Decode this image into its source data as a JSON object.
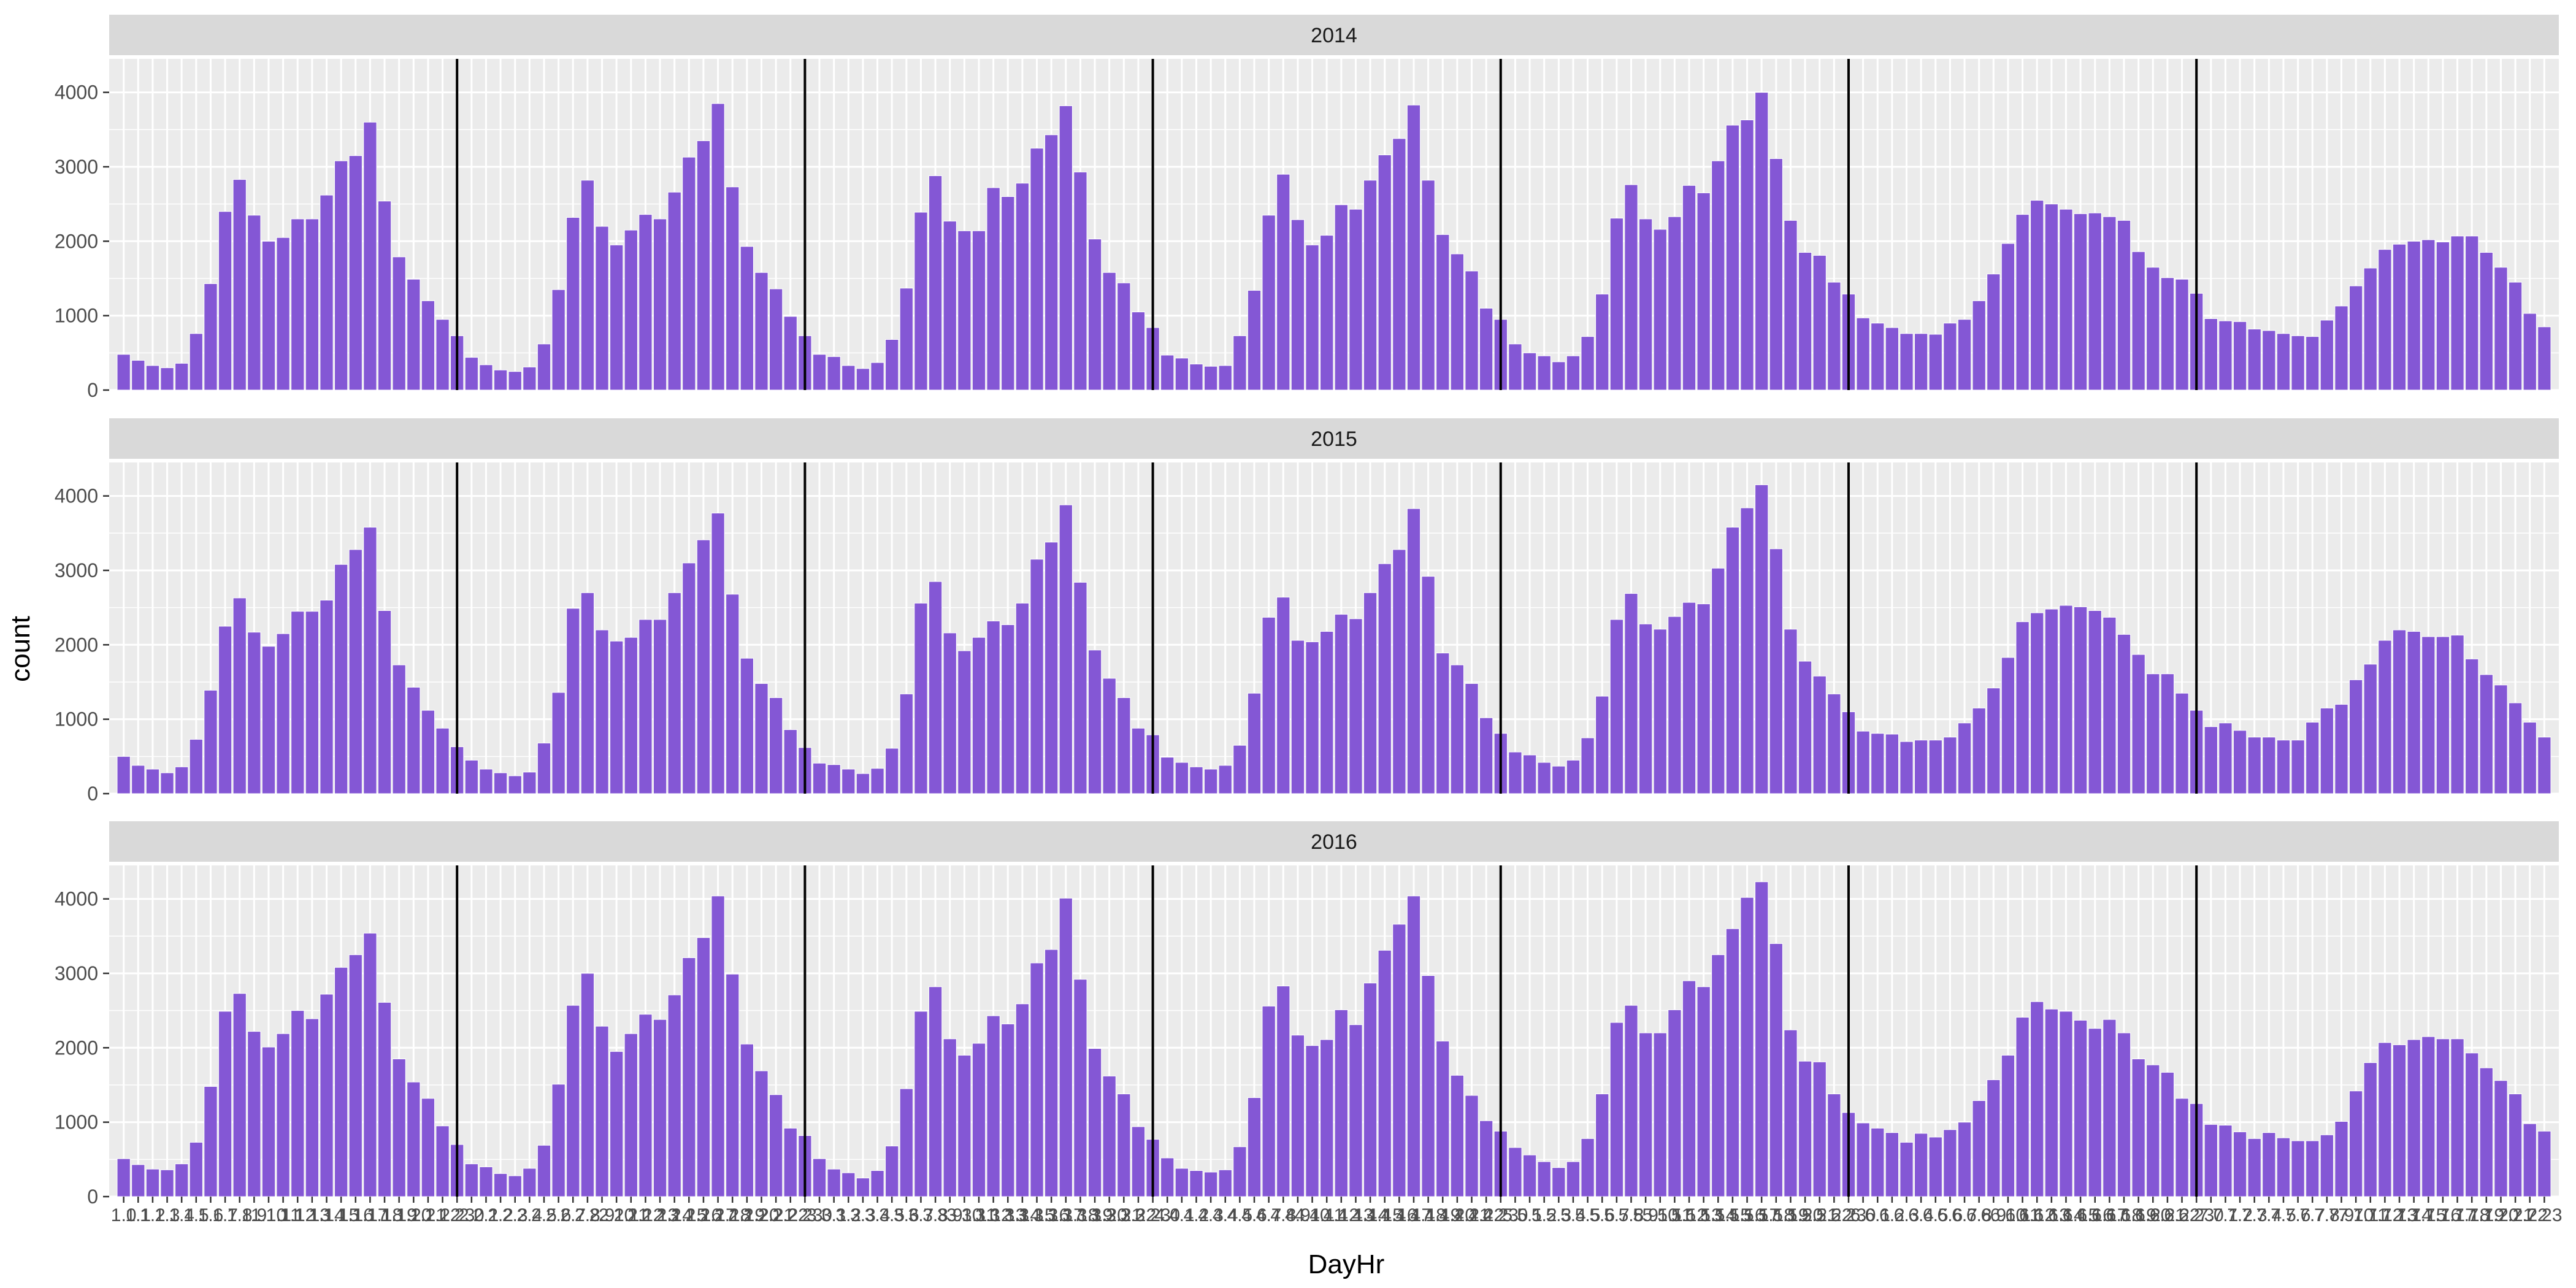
{
  "chart_data": {
    "type": "bar",
    "xlabel": "DayHr",
    "ylabel": "count",
    "ylim": [
      0,
      4450
    ],
    "y_ticks": [
      0,
      1000,
      2000,
      3000,
      4000
    ],
    "panel_background": "#EBEBEB",
    "strip_background": "#D9D9D9",
    "bar_color": "#8457D5",
    "day_separator_color": "#000000",
    "hours_per_day": 24,
    "num_days": 7,
    "panels": [
      {
        "title": "2014",
        "days": [
          [
            480,
            400,
            330,
            300,
            360,
            760,
            1430,
            2400,
            2830,
            2350,
            2000,
            2050,
            2300,
            2300,
            2620,
            3080,
            3150,
            3600,
            2540,
            1790,
            1490,
            1200,
            950,
            730
          ],
          [
            440,
            340,
            270,
            250,
            310,
            620,
            1350,
            2320,
            2820,
            2200,
            1950,
            2150,
            2360,
            2300,
            2660,
            3130,
            3350,
            3850,
            2730,
            1930,
            1580,
            1360,
            990,
            730
          ],
          [
            480,
            450,
            330,
            290,
            370,
            680,
            1370,
            2390,
            2880,
            2270,
            2140,
            2140,
            2720,
            2600,
            2780,
            3250,
            3430,
            3820,
            2930,
            2030,
            1580,
            1440,
            1050,
            840
          ],
          [
            470,
            430,
            350,
            320,
            330,
            730,
            1340,
            2350,
            2900,
            2290,
            1950,
            2080,
            2490,
            2430,
            2820,
            3160,
            3380,
            3830,
            2820,
            2090,
            1830,
            1600,
            1100,
            950
          ],
          [
            620,
            500,
            460,
            380,
            460,
            720,
            1290,
            2310,
            2760,
            2300,
            2160,
            2330,
            2750,
            2650,
            3080,
            3560,
            3630,
            4000,
            3110,
            2280,
            1850,
            1810,
            1450,
            1290
          ],
          [
            970,
            900,
            840,
            760,
            760,
            750,
            900,
            950,
            1200,
            1560,
            1970,
            2360,
            2550,
            2500,
            2430,
            2370,
            2380,
            2330,
            2280,
            1860,
            1650,
            1510,
            1490,
            1300
          ],
          [
            960,
            930,
            920,
            820,
            800,
            760,
            730,
            720,
            940,
            1130,
            1400,
            1640,
            1890,
            1960,
            2000,
            2020,
            1990,
            2070,
            2070,
            1850,
            1650,
            1450,
            1030,
            850
          ]
        ]
      },
      {
        "title": "2015",
        "days": [
          [
            500,
            380,
            330,
            280,
            360,
            730,
            1390,
            2250,
            2630,
            2170,
            1980,
            2150,
            2450,
            2450,
            2600,
            3080,
            3280,
            3580,
            2460,
            1730,
            1430,
            1120,
            880,
            630
          ],
          [
            450,
            330,
            280,
            240,
            290,
            680,
            1360,
            2490,
            2700,
            2200,
            2050,
            2100,
            2340,
            2340,
            2700,
            3100,
            3410,
            3770,
            2680,
            1820,
            1480,
            1290,
            860,
            620
          ],
          [
            410,
            390,
            330,
            270,
            340,
            610,
            1340,
            2560,
            2850,
            2160,
            1920,
            2100,
            2320,
            2270,
            2560,
            3150,
            3380,
            3880,
            2840,
            1930,
            1550,
            1290,
            880,
            790
          ],
          [
            490,
            420,
            360,
            330,
            380,
            650,
            1350,
            2370,
            2640,
            2060,
            2040,
            2180,
            2410,
            2350,
            2700,
            3090,
            3280,
            3830,
            2920,
            1890,
            1730,
            1480,
            1020,
            810
          ],
          [
            560,
            520,
            420,
            370,
            450,
            750,
            1310,
            2340,
            2690,
            2280,
            2210,
            2380,
            2570,
            2550,
            3030,
            3580,
            3840,
            4150,
            3290,
            2210,
            1780,
            1580,
            1340,
            1100
          ],
          [
            840,
            810,
            800,
            700,
            720,
            720,
            760,
            950,
            1150,
            1420,
            1830,
            2310,
            2430,
            2480,
            2530,
            2510,
            2460,
            2370,
            2140,
            1870,
            1610,
            1610,
            1350,
            1120
          ],
          [
            900,
            950,
            850,
            760,
            760,
            720,
            720,
            960,
            1150,
            1200,
            1530,
            1740,
            2060,
            2200,
            2180,
            2110,
            2110,
            2130,
            1810,
            1600,
            1460,
            1220,
            960,
            760
          ]
        ]
      },
      {
        "title": "2016",
        "days": [
          [
            510,
            430,
            370,
            360,
            440,
            730,
            1480,
            2490,
            2730,
            2220,
            2010,
            2190,
            2500,
            2390,
            2720,
            3080,
            3250,
            3540,
            2610,
            1850,
            1540,
            1320,
            950,
            700
          ],
          [
            440,
            400,
            310,
            280,
            380,
            690,
            1510,
            2570,
            3000,
            2290,
            1950,
            2190,
            2450,
            2380,
            2710,
            3210,
            3480,
            4040,
            2990,
            2050,
            1690,
            1370,
            920,
            820
          ],
          [
            510,
            370,
            320,
            250,
            350,
            680,
            1450,
            2490,
            2820,
            2120,
            1900,
            2060,
            2430,
            2320,
            2590,
            3140,
            3320,
            4010,
            2920,
            1990,
            1620,
            1380,
            940,
            770
          ],
          [
            520,
            380,
            350,
            330,
            360,
            670,
            1330,
            2560,
            2830,
            2170,
            2030,
            2110,
            2510,
            2310,
            2870,
            3310,
            3660,
            4040,
            2970,
            2090,
            1630,
            1360,
            1020,
            880
          ],
          [
            660,
            560,
            470,
            390,
            470,
            780,
            1380,
            2340,
            2570,
            2200,
            2200,
            2510,
            2900,
            2820,
            3250,
            3600,
            4020,
            4230,
            3400,
            2240,
            1820,
            1810,
            1380,
            1130
          ],
          [
            990,
            920,
            860,
            730,
            850,
            800,
            900,
            1000,
            1290,
            1570,
            1900,
            2410,
            2620,
            2520,
            2490,
            2370,
            2260,
            2380,
            2200,
            1850,
            1770,
            1670,
            1320,
            1250
          ],
          [
            970,
            960,
            870,
            780,
            860,
            790,
            750,
            750,
            830,
            1010,
            1420,
            1800,
            2070,
            2040,
            2110,
            2150,
            2120,
            2120,
            1930,
            1730,
            1560,
            1380,
            980,
            880
          ]
        ]
      }
    ]
  }
}
